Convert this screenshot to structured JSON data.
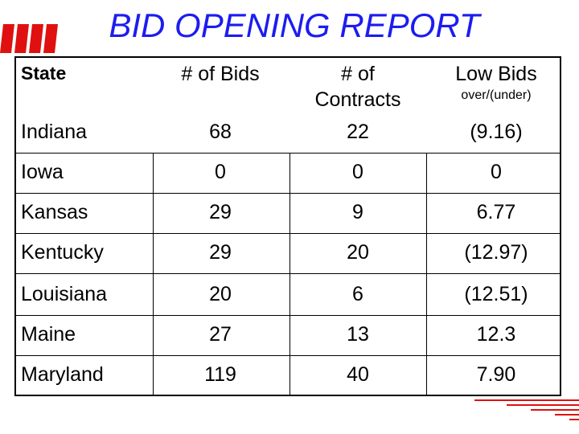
{
  "title": "BID OPENING REPORT",
  "table": {
    "header": [
      "State",
      "# of Bids",
      "# of Contracts",
      "Low Bids"
    ],
    "header_note": "over/(under)",
    "rows": [
      [
        "Indiana",
        "68",
        "22",
        "(9.16)"
      ],
      [
        "Iowa",
        "0",
        "0",
        "0"
      ],
      [
        "Kansas",
        "29",
        "9",
        "6.77"
      ],
      [
        "Kentucky",
        "29",
        "20",
        "(12.97)"
      ],
      [
        "Louisiana",
        "20",
        "6",
        "(12.51)"
      ],
      [
        "Maine",
        "27",
        "13",
        "12.3"
      ],
      [
        "Maryland",
        "119",
        "40",
        "7.90"
      ]
    ]
  }
}
